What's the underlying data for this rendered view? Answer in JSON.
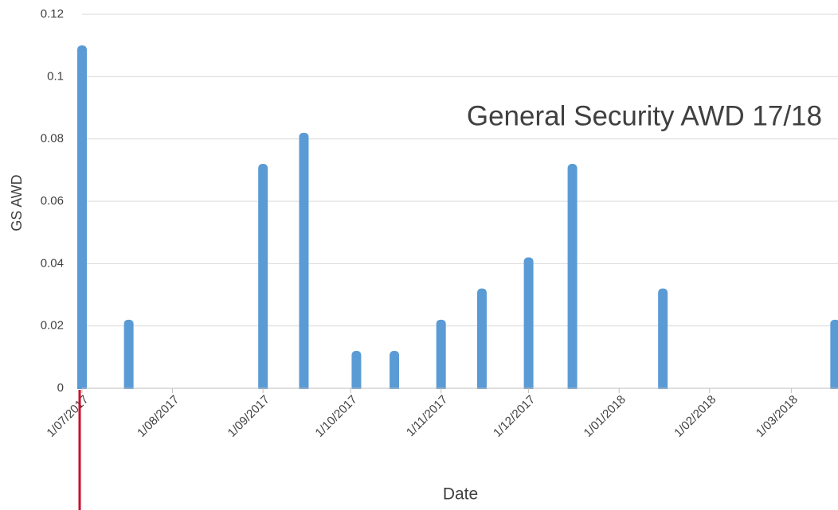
{
  "chart_data": {
    "type": "bar",
    "title": "General Security AWD 17/18",
    "x_label": "Date",
    "y_label": "GS AWD",
    "color": "#5b9bd5",
    "grid": true,
    "x": [
      "2017-07-01",
      "2017-07-17",
      "2017-09-01",
      "2017-09-15",
      "2017-10-03",
      "2017-10-16",
      "2017-11-01",
      "2017-11-15",
      "2017-12-01",
      "2017-12-16",
      "2018-01-16",
      "2018-03-16"
    ],
    "values": [
      0.11,
      0.022,
      0.072,
      0.082,
      0.012,
      0.012,
      0.022,
      0.032,
      0.042,
      0.072,
      0.032,
      0.022
    ],
    "xlim": [
      "2017-07-01",
      "2018-03-17"
    ],
    "xticks": [
      {
        "value": "2017-07-01",
        "label": "1/07/2017"
      },
      {
        "value": "2017-08-01",
        "label": "1/08/2017"
      },
      {
        "value": "2017-09-01",
        "label": "1/09/2017"
      },
      {
        "value": "2017-10-01",
        "label": "1/10/2017"
      },
      {
        "value": "2017-11-01",
        "label": "1/11/2017"
      },
      {
        "value": "2017-12-01",
        "label": "1/12/2017"
      },
      {
        "value": "2018-01-01",
        "label": "1/01/2018"
      },
      {
        "value": "2018-02-01",
        "label": "1/02/2018"
      },
      {
        "value": "2018-03-01",
        "label": "1/03/2018"
      }
    ],
    "ylim": [
      0,
      0.12
    ],
    "yticks": [
      0,
      0.02,
      0.04,
      0.06,
      0.08,
      0.1,
      0.12
    ]
  }
}
